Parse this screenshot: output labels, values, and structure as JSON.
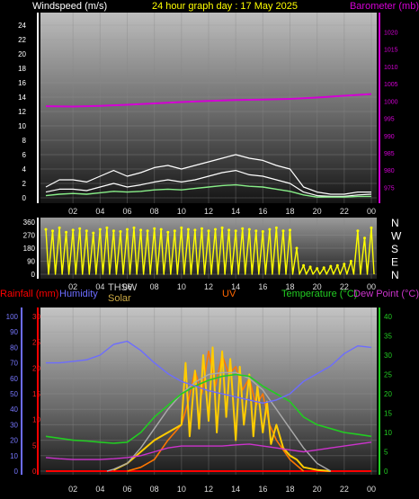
{
  "header": {
    "left": "Windspeed (m/s)",
    "center": "24 hour graph day : 17 May 2025",
    "right": "Barometer (mb)"
  },
  "labels": {
    "rainfall": "Rainfall (mm)",
    "humidity": "Humidity",
    "thsw": "THSW",
    "solar": "Solar",
    "uv": "UV",
    "temperature": "Temperature (°C)",
    "dewpoint": "Dew Point (°C)"
  },
  "colors": {
    "windspeed": "#ffffff",
    "gust": "#ffffff",
    "windavg": "#88ee88",
    "barometer": "#d400d4",
    "direction": "#ffff00",
    "humidity": "#6c6cff",
    "temperature": "#22cc22",
    "dewpoint": "#cc33cc",
    "solar": "#ffcc00",
    "uv": "#ff7700",
    "thsw": "#aaaaaa",
    "rain": "#ff0000"
  },
  "chart_data": [
    {
      "type": "line",
      "name": "wind-barometer",
      "x_ticks": [
        "02",
        "04",
        "06",
        "08",
        "10",
        "12",
        "14",
        "16",
        "18",
        "20",
        "22",
        "00"
      ],
      "left_axis": {
        "label": "Windspeed (m/s)",
        "min": 0,
        "max": 25,
        "ticks": [
          0,
          2,
          4,
          6,
          8,
          10,
          12,
          14,
          16,
          18,
          20,
          22,
          24
        ]
      },
      "right_axis": {
        "label": "Barometer (mb)",
        "min": 972,
        "max": 1024,
        "ticks": [
          975,
          980,
          985,
          990,
          995,
          1000,
          1005,
          1010,
          1015,
          1020
        ]
      },
      "series": [
        {
          "name": "Windspeed gust",
          "axis": "left",
          "x": [
            0,
            1,
            2,
            3,
            4,
            5,
            6,
            7,
            8,
            9,
            10,
            11,
            12,
            13,
            14,
            15,
            16,
            17,
            18,
            19,
            20,
            21,
            22,
            23,
            24
          ],
          "y": [
            1.5,
            2.5,
            2.5,
            2.2,
            3.0,
            3.8,
            3.0,
            3.5,
            4.2,
            4.5,
            4.0,
            4.5,
            5.0,
            5.5,
            6.0,
            5.5,
            5.2,
            4.5,
            4.0,
            1.5,
            0.8,
            0.5,
            0.5,
            0.8,
            0.8
          ]
        },
        {
          "name": "Windspeed",
          "axis": "left",
          "x": [
            0,
            1,
            2,
            3,
            4,
            5,
            6,
            7,
            8,
            9,
            10,
            11,
            12,
            13,
            14,
            15,
            16,
            17,
            18,
            19,
            20,
            21,
            22,
            23,
            24
          ],
          "y": [
            0.8,
            1.2,
            1.2,
            1.0,
            1.5,
            2.0,
            1.5,
            1.8,
            2.2,
            2.5,
            2.2,
            2.5,
            3.0,
            3.5,
            3.8,
            3.2,
            3.0,
            2.5,
            2.0,
            0.8,
            0.3,
            0.2,
            0.2,
            0.4,
            0.5
          ]
        },
        {
          "name": "Wind average",
          "axis": "left",
          "x": [
            0,
            1,
            2,
            3,
            4,
            5,
            6,
            7,
            8,
            9,
            10,
            11,
            12,
            13,
            14,
            15,
            16,
            17,
            18,
            19,
            20,
            21,
            22,
            23,
            24
          ],
          "y": [
            0.3,
            0.5,
            0.6,
            0.5,
            0.7,
            0.9,
            0.8,
            0.9,
            1.1,
            1.2,
            1.1,
            1.3,
            1.5,
            1.7,
            1.8,
            1.6,
            1.5,
            1.2,
            0.9,
            0.4,
            0.1,
            0.1,
            0.1,
            0.2,
            0.2
          ]
        },
        {
          "name": "Barometer",
          "axis": "right",
          "x": [
            0,
            2,
            4,
            6,
            8,
            10,
            12,
            14,
            16,
            18,
            20,
            22,
            24
          ],
          "y": [
            998.5,
            998.4,
            998.6,
            998.9,
            999.3,
            999.7,
            1000.0,
            1000.3,
            1000.4,
            1000.6,
            1001.0,
            1001.5,
            1002.0
          ]
        }
      ]
    },
    {
      "type": "scatter",
      "name": "wind-direction",
      "x_ticks": [
        "02",
        "04",
        "06",
        "08",
        "10",
        "12",
        "14",
        "16",
        "18",
        "20",
        "22",
        "00"
      ],
      "left_axis": {
        "min": 0,
        "max": 360,
        "ticks": [
          0,
          90,
          180,
          270,
          360
        ]
      },
      "right_labels": [
        "N",
        "W",
        "S",
        "E",
        "N"
      ],
      "series": [
        {
          "name": "Wind direction",
          "x": [
            0,
            0.5,
            1,
            1.5,
            2,
            2.5,
            3,
            3.5,
            4,
            4.5,
            5,
            5.5,
            6,
            6.5,
            7,
            7.5,
            8,
            8.5,
            9,
            9.5,
            10,
            10.5,
            11,
            11.5,
            12,
            12.5,
            13,
            13.5,
            14,
            14.5,
            15,
            15.5,
            16,
            16.5,
            17,
            17.5,
            18,
            18.5,
            19,
            19.5,
            20,
            20.5,
            21,
            21.5,
            22,
            22.5,
            23,
            23.5,
            24
          ],
          "y": [
            310,
            300,
            320,
            290,
            305,
            315,
            300,
            285,
            310,
            320,
            300,
            295,
            310,
            320,
            305,
            300,
            315,
            310,
            290,
            300,
            320,
            310,
            305,
            315,
            300,
            310,
            320,
            305,
            300,
            315,
            310,
            300,
            295,
            310,
            320,
            300,
            305,
            180,
            60,
            50,
            40,
            45,
            55,
            60,
            70,
            90,
            300,
            250,
            320
          ]
        }
      ]
    },
    {
      "type": "line",
      "name": "temperature-solar",
      "x_ticks": [
        "02",
        "04",
        "06",
        "08",
        "10",
        "12",
        "14",
        "16",
        "18",
        "20",
        "22",
        "00"
      ],
      "left_axis_rain": {
        "label": "Rainfall (mm)",
        "min": 0,
        "max": 30,
        "ticks": [
          0,
          5,
          10,
          15,
          20,
          25,
          30
        ]
      },
      "left_axis_humidity": {
        "label": "Humidity",
        "min": 0,
        "max": 100,
        "ticks": [
          0,
          10,
          20,
          30,
          40,
          50,
          60,
          70,
          80,
          90,
          100
        ]
      },
      "right_axis": {
        "label": "Temperature (°C)",
        "min": 0,
        "max": 40,
        "ticks": [
          0,
          5,
          10,
          15,
          20,
          25,
          30,
          35,
          40
        ]
      },
      "series": [
        {
          "name": "Humidity",
          "axis": "humidity",
          "x": [
            0,
            1,
            2,
            3,
            4,
            5,
            6,
            7,
            8,
            9,
            10,
            11,
            12,
            13,
            14,
            15,
            16,
            17,
            18,
            19,
            20,
            21,
            22,
            23,
            24
          ],
          "y": [
            70,
            70,
            71,
            72,
            75,
            82,
            84,
            78,
            70,
            63,
            58,
            55,
            52,
            50,
            48,
            46,
            44,
            46,
            50,
            58,
            63,
            68,
            76,
            81,
            80
          ]
        },
        {
          "name": "Temperature",
          "axis": "right",
          "x": [
            0,
            1,
            2,
            3,
            4,
            5,
            6,
            7,
            8,
            9,
            10,
            11,
            12,
            13,
            14,
            15,
            16,
            17,
            18,
            19,
            20,
            21,
            22,
            23,
            24
          ],
          "y": [
            9,
            8.5,
            8,
            7.8,
            7.5,
            7.2,
            7.5,
            10,
            14,
            17,
            20,
            22,
            23.5,
            24.5,
            25,
            24.5,
            22,
            20,
            18,
            14,
            12,
            11,
            10,
            9.5,
            9
          ]
        },
        {
          "name": "Dew Point",
          "axis": "right",
          "x": [
            0,
            1,
            2,
            3,
            4,
            5,
            6,
            7,
            8,
            9,
            10,
            11,
            12,
            13,
            14,
            15,
            16,
            17,
            18,
            19,
            20,
            21,
            22,
            23,
            24
          ],
          "y": [
            3.5,
            3.2,
            3.0,
            3.0,
            3.0,
            3.2,
            3.5,
            4.0,
            5.0,
            6.0,
            6.5,
            6.5,
            6.5,
            6.5,
            6.8,
            7.0,
            6.5,
            6.0,
            5.5,
            5.0,
            5.5,
            6.0,
            6.5,
            7.0,
            7.5
          ]
        },
        {
          "name": "THSW",
          "axis": "right",
          "x": [
            4.5,
            5,
            6,
            7,
            8,
            9,
            10,
            11,
            12,
            13,
            14,
            15,
            16,
            17,
            18,
            19,
            20,
            21
          ],
          "y": [
            0,
            0.5,
            2,
            6,
            11,
            16,
            20,
            23,
            25,
            25.5,
            25.5,
            24,
            21,
            16,
            11,
            6,
            2,
            0
          ]
        },
        {
          "name": "Solar",
          "axis": "right",
          "x": [
            5,
            6,
            7,
            8,
            9,
            10,
            10.3,
            10.6,
            11,
            11.3,
            11.6,
            12,
            12.3,
            12.6,
            13,
            13.3,
            13.6,
            14,
            14.3,
            14.6,
            15,
            15.3,
            15.6,
            16,
            16.3,
            16.6,
            17,
            17.5,
            18,
            18.5,
            19,
            20,
            21
          ],
          "y": [
            0.3,
            2,
            5,
            8,
            10,
            12,
            28,
            9,
            26,
            11,
            30,
            13,
            32,
            10,
            31,
            14,
            29,
            8,
            27,
            12,
            25,
            9,
            22,
            10,
            18,
            7,
            12,
            6,
            4,
            3,
            1,
            0.3,
            0
          ]
        },
        {
          "name": "UV",
          "axis": "right",
          "x": [
            6,
            7,
            8,
            9,
            10,
            10.5,
            11,
            11.5,
            12,
            12.5,
            13,
            13.5,
            14,
            14.5,
            15,
            15.5,
            16,
            16.5,
            17,
            18,
            19
          ],
          "y": [
            0,
            1,
            3,
            8,
            12,
            18,
            26,
            20,
            31,
            22,
            30,
            25,
            27,
            21,
            24,
            17,
            20,
            12,
            8,
            3,
            0
          ]
        },
        {
          "name": "Rainfall",
          "axis": "rain",
          "x": [
            0,
            24
          ],
          "y": [
            0,
            0
          ]
        }
      ]
    }
  ]
}
